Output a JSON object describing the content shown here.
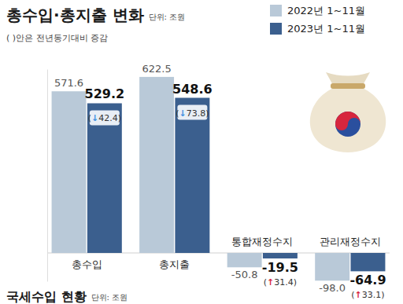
{
  "chart_data": {
    "type": "bar",
    "title": "총수입·총지출 변화",
    "unit": "단위: 조원",
    "subtitle": "( )안은 전년동기대비 증감",
    "categories": [
      "총수입",
      "총지출",
      "통합재정수지",
      "관리재정수지"
    ],
    "series": [
      {
        "name": "2022년 1~11월",
        "color": "#b9c9d8",
        "values": [
          571.6,
          622.5,
          -50.8,
          -98.0
        ],
        "value_labels": [
          "571.6",
          "622.5",
          "-50.8",
          "-98.0"
        ]
      },
      {
        "name": "2023년 1~11월",
        "color": "#3b5f8e",
        "values": [
          529.2,
          548.6,
          -19.5,
          -64.9
        ],
        "value_labels": [
          "529.2",
          "548.6",
          "-19.5",
          "-64.9"
        ],
        "changes": [
          -42.4,
          -73.8,
          31.4,
          33.1
        ],
        "change_labels": [
          "(↓42.4)",
          "(↓73.8)",
          "(↑31.4)",
          "(↑33.1)"
        ]
      }
    ],
    "ylim": [
      -100,
      650
    ],
    "yticks": [
      0
    ],
    "grid": true,
    "data_labels": true,
    "tick_labels": "x",
    "legend": "upper right",
    "footer": {
      "title": "국세수입 현황",
      "unit": "단위: 조원"
    }
  }
}
